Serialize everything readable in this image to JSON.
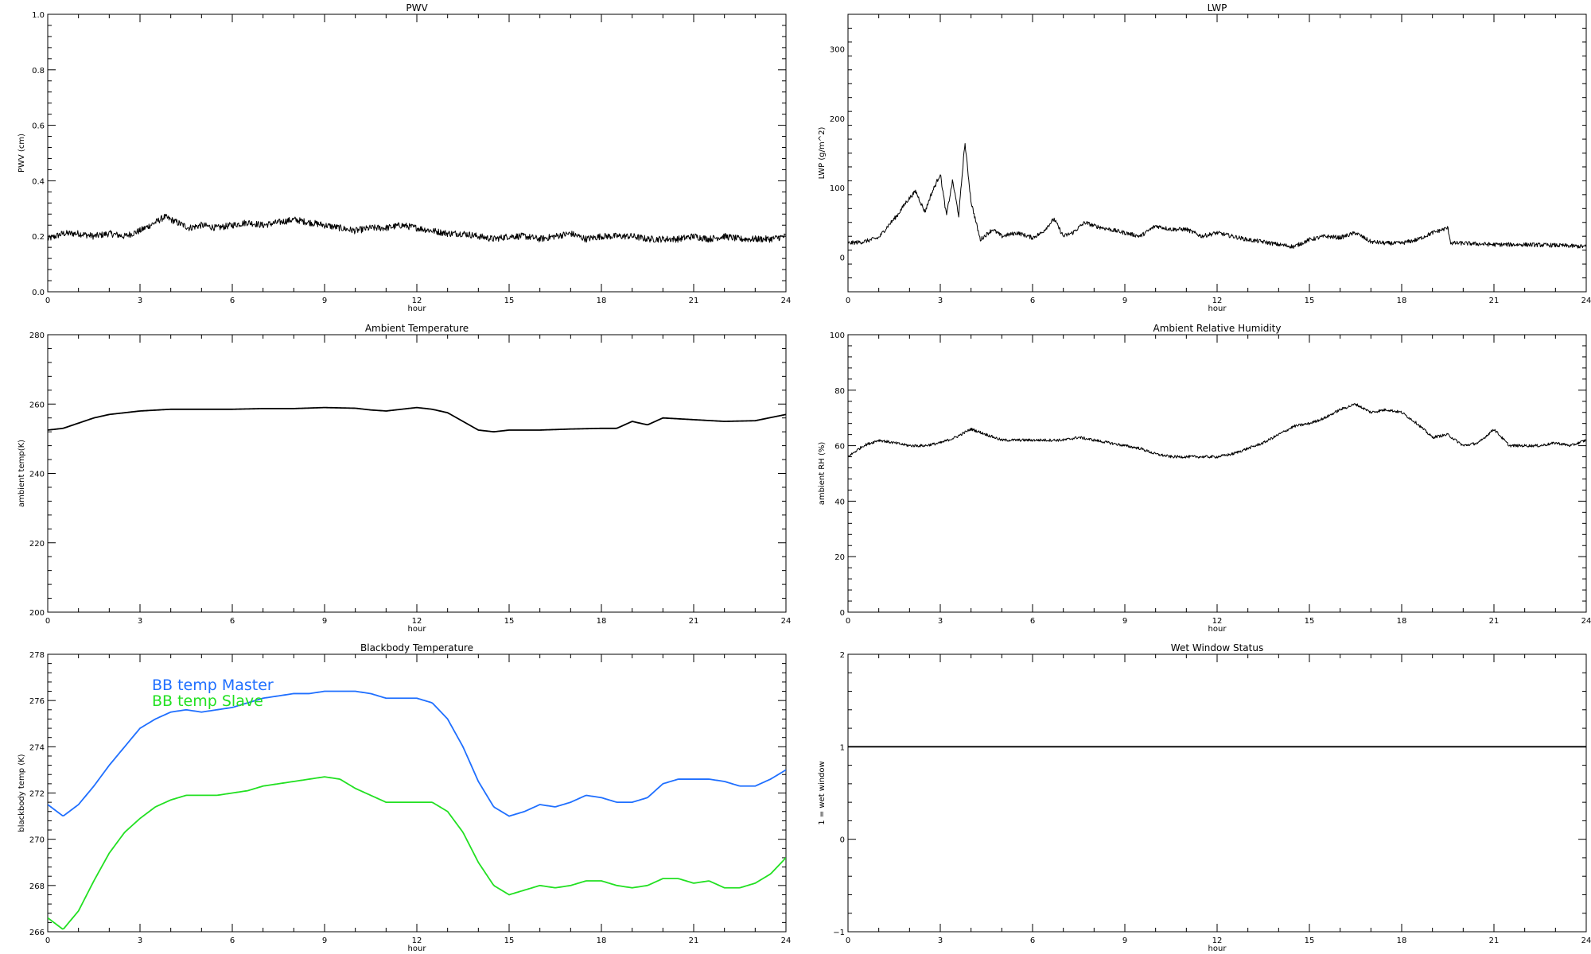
{
  "chart_data": [
    {
      "id": "pwv",
      "type": "line",
      "title": "PWV",
      "xlabel": "hour",
      "ylabel": "PWV (cm)",
      "xlim": [
        0,
        24
      ],
      "ylim": [
        0,
        1
      ],
      "x_ticks": [
        0,
        3,
        6,
        9,
        12,
        15,
        18,
        21,
        24
      ],
      "x_tick_labels": [
        "0",
        "3",
        "6",
        "9",
        "12",
        "15",
        "18",
        "21",
        "24"
      ],
      "y_ticks": [
        0,
        0.2,
        0.4,
        0.6,
        0.8,
        1.0
      ],
      "y_tick_labels": [
        "0.0",
        "0.2",
        "0.4",
        "0.6",
        "0.8",
        "1.0"
      ],
      "noise": 0.012,
      "series": [
        {
          "color": "#000000",
          "x": [
            0,
            0.5,
            1,
            1.5,
            2,
            2.5,
            3,
            3.5,
            3.8,
            4.2,
            4.6,
            5,
            5.5,
            6,
            6.5,
            7,
            7.5,
            8,
            8.5,
            9,
            9.5,
            10,
            10.5,
            11,
            11.5,
            12,
            12.5,
            13,
            13.5,
            14,
            14.5,
            15,
            15.5,
            16,
            16.5,
            17,
            17.5,
            18,
            18.5,
            19,
            19.5,
            20,
            20.5,
            21,
            21.5,
            22,
            22.5,
            23,
            23.5,
            24
          ],
          "values": [
            0.19,
            0.21,
            0.21,
            0.2,
            0.21,
            0.2,
            0.22,
            0.25,
            0.27,
            0.25,
            0.23,
            0.24,
            0.23,
            0.24,
            0.25,
            0.24,
            0.25,
            0.26,
            0.25,
            0.24,
            0.23,
            0.22,
            0.23,
            0.23,
            0.24,
            0.23,
            0.22,
            0.21,
            0.21,
            0.2,
            0.19,
            0.2,
            0.2,
            0.19,
            0.2,
            0.21,
            0.19,
            0.2,
            0.2,
            0.2,
            0.19,
            0.19,
            0.19,
            0.2,
            0.19,
            0.2,
            0.19,
            0.19,
            0.19,
            0.2
          ]
        }
      ]
    },
    {
      "id": "lwp",
      "type": "line",
      "title": "LWP",
      "xlabel": "hour",
      "ylabel": "LWP (g/m^2)",
      "xlim": [
        0,
        24
      ],
      "ylim": [
        -50,
        350
      ],
      "x_ticks": [
        0,
        3,
        6,
        9,
        12,
        15,
        18,
        21,
        24
      ],
      "x_tick_labels": [
        "0",
        "3",
        "6",
        "9",
        "12",
        "15",
        "18",
        "21",
        "24"
      ],
      "y_ticks": [
        0,
        100,
        200,
        300
      ],
      "y_tick_labels": [
        "0",
        "100",
        "200",
        "300"
      ],
      "noise": 3,
      "series": [
        {
          "color": "#000000",
          "x": [
            0,
            0.5,
            1,
            1.3,
            1.6,
            1.9,
            2.2,
            2.5,
            2.7,
            3,
            3.2,
            3.4,
            3.6,
            3.8,
            4,
            4.3,
            4.7,
            5,
            5.5,
            6,
            6.3,
            6.7,
            7,
            7.3,
            7.7,
            8,
            8.5,
            9,
            9.5,
            10,
            10.5,
            11,
            11.5,
            12,
            12.5,
            13,
            13.5,
            14,
            14.5,
            15,
            15.5,
            16,
            16.5,
            17,
            17.5,
            18,
            18.5,
            19,
            19.5,
            19.6,
            20,
            21,
            22,
            23,
            24
          ],
          "values": [
            20,
            22,
            28,
            45,
            60,
            80,
            95,
            65,
            90,
            120,
            60,
            110,
            60,
            165,
            80,
            25,
            40,
            30,
            35,
            28,
            35,
            55,
            30,
            35,
            50,
            45,
            40,
            35,
            30,
            45,
            40,
            40,
            30,
            35,
            30,
            25,
            22,
            18,
            15,
            25,
            30,
            28,
            35,
            22,
            20,
            20,
            25,
            35,
            42,
            20,
            20,
            18,
            18,
            17,
            15
          ]
        }
      ]
    },
    {
      "id": "ambient-temperature",
      "type": "line",
      "title": "Ambient Temperature",
      "xlabel": "hour",
      "ylabel": "ambient temp(K)",
      "xlim": [
        0,
        24
      ],
      "ylim": [
        200,
        280
      ],
      "x_ticks": [
        0,
        3,
        6,
        9,
        12,
        15,
        18,
        21,
        24
      ],
      "x_tick_labels": [
        "0",
        "3",
        "6",
        "9",
        "12",
        "15",
        "18",
        "21",
        "24"
      ],
      "y_ticks": [
        200,
        220,
        240,
        260,
        280
      ],
      "y_tick_labels": [
        "200",
        "220",
        "240",
        "260",
        "280"
      ],
      "series": [
        {
          "color": "#000000",
          "x": [
            0,
            0.5,
            1,
            1.5,
            2,
            2.5,
            3,
            4,
            5,
            6,
            7,
            8,
            9,
            10,
            10.5,
            11,
            11.5,
            12,
            12.5,
            13,
            13.5,
            14,
            14.5,
            15,
            16,
            17,
            18,
            18.5,
            19,
            19.5,
            20,
            21,
            22,
            23,
            24
          ],
          "values": [
            252.5,
            253,
            254.5,
            256,
            257,
            257.5,
            258,
            258.5,
            258.5,
            258.5,
            258.7,
            258.7,
            259,
            258.8,
            258.3,
            258,
            258.5,
            259,
            258.5,
            257.5,
            255,
            252.5,
            252,
            252.5,
            252.5,
            252.8,
            253,
            253,
            255,
            254,
            256,
            255.5,
            255,
            255.2,
            257
          ]
        }
      ]
    },
    {
      "id": "ambient-relative-humidity",
      "type": "line",
      "title": "Ambient Relative Humidity",
      "xlabel": "hour",
      "ylabel": "ambient RH (%)",
      "xlim": [
        0,
        24
      ],
      "ylim": [
        0,
        100
      ],
      "x_ticks": [
        0,
        3,
        6,
        9,
        12,
        15,
        18,
        21,
        24
      ],
      "x_tick_labels": [
        "0",
        "3",
        "6",
        "9",
        "12",
        "15",
        "18",
        "21",
        "24"
      ],
      "y_ticks": [
        0,
        20,
        40,
        60,
        80,
        100
      ],
      "y_tick_labels": [
        "0",
        "20",
        "40",
        "60",
        "80",
        "100"
      ],
      "noise": 0.5,
      "series": [
        {
          "color": "#000000",
          "x": [
            0,
            0.5,
            1,
            1.5,
            2,
            2.5,
            3,
            3.5,
            4,
            4.5,
            5,
            5.5,
            6,
            6.5,
            7,
            7.5,
            8,
            8.5,
            9,
            9.5,
            10,
            10.5,
            11,
            11.5,
            12,
            12.5,
            13,
            13.5,
            14,
            14.5,
            15,
            15.5,
            16,
            16.5,
            17,
            17.5,
            18,
            18.5,
            19,
            19.5,
            20,
            20.5,
            21,
            21.5,
            22,
            22.5,
            23,
            23.5,
            24
          ],
          "values": [
            56,
            60,
            62,
            61,
            60,
            60,
            61,
            63,
            66,
            64,
            62,
            62,
            62,
            62,
            62,
            63,
            62,
            61,
            60,
            59,
            57,
            56,
            56,
            56,
            56,
            57,
            59,
            61,
            64,
            67,
            68,
            70,
            73,
            75,
            72,
            73,
            72,
            68,
            63,
            64,
            60,
            61,
            66,
            60,
            60,
            60,
            61,
            60,
            62
          ]
        }
      ]
    },
    {
      "id": "blackbody-temperature",
      "type": "line",
      "title": "Blackbody Temperature",
      "xlabel": "hour",
      "ylabel": "blackbody temp (K)",
      "xlim": [
        0,
        24
      ],
      "ylim": [
        266,
        278
      ],
      "x_ticks": [
        0,
        3,
        6,
        9,
        12,
        15,
        18,
        21,
        24
      ],
      "x_tick_labels": [
        "0",
        "3",
        "6",
        "9",
        "12",
        "15",
        "18",
        "21",
        "24"
      ],
      "y_ticks": [
        266,
        268,
        270,
        272,
        274,
        276,
        278
      ],
      "y_tick_labels": [
        "266",
        "268",
        "270",
        "272",
        "274",
        "276",
        "278"
      ],
      "legend": {
        "position": "top-left"
      },
      "series": [
        {
          "name": "BB temp Master",
          "color": "#1f6fff",
          "x": [
            0,
            0.5,
            1,
            1.5,
            2,
            2.5,
            3,
            3.5,
            4,
            4.5,
            5,
            5.5,
            6,
            6.5,
            7,
            7.5,
            8,
            8.5,
            9,
            9.5,
            10,
            10.5,
            11,
            11.5,
            12,
            12.5,
            13,
            13.5,
            14,
            14.5,
            15,
            15.5,
            16,
            16.5,
            17,
            17.5,
            18,
            18.5,
            19,
            19.5,
            20,
            20.5,
            21,
            21.5,
            22,
            22.5,
            23,
            23.5,
            24
          ],
          "values": [
            271.5,
            271,
            271.5,
            272.3,
            273.2,
            274,
            274.8,
            275.2,
            275.5,
            275.6,
            275.5,
            275.6,
            275.7,
            275.9,
            276.1,
            276.2,
            276.3,
            276.3,
            276.4,
            276.4,
            276.4,
            276.3,
            276.1,
            276.1,
            276.1,
            275.9,
            275.2,
            274,
            272.5,
            271.4,
            271,
            271.2,
            271.5,
            271.4,
            271.6,
            271.9,
            271.8,
            271.6,
            271.6,
            271.8,
            272.4,
            272.6,
            272.6,
            272.6,
            272.5,
            272.3,
            272.3,
            272.6,
            273
          ]
        },
        {
          "name": "BB temp Slave",
          "color": "#22e022",
          "x": [
            0,
            0.5,
            1,
            1.5,
            2,
            2.5,
            3,
            3.5,
            4,
            4.5,
            5,
            5.5,
            6,
            6.5,
            7,
            7.5,
            8,
            8.5,
            9,
            9.5,
            10,
            10.5,
            11,
            11.5,
            12,
            12.5,
            13,
            13.5,
            14,
            14.5,
            15,
            15.5,
            16,
            16.5,
            17,
            17.5,
            18,
            18.5,
            19,
            19.5,
            20,
            20.5,
            21,
            21.5,
            22,
            22.5,
            23,
            23.5,
            24
          ],
          "values": [
            266.6,
            266.1,
            266.9,
            268.2,
            269.4,
            270.3,
            270.9,
            271.4,
            271.7,
            271.9,
            271.9,
            271.9,
            272,
            272.1,
            272.3,
            272.4,
            272.5,
            272.6,
            272.7,
            272.6,
            272.2,
            271.9,
            271.6,
            271.6,
            271.6,
            271.6,
            271.2,
            270.3,
            269,
            268,
            267.6,
            267.8,
            268,
            267.9,
            268,
            268.2,
            268.2,
            268,
            267.9,
            268,
            268.3,
            268.3,
            268.1,
            268.2,
            267.9,
            267.9,
            268.1,
            268.5,
            269.2
          ]
        }
      ]
    },
    {
      "id": "wet-window-status",
      "type": "line",
      "title": "Wet Window Status",
      "xlabel": "hour",
      "ylabel": "1 = wet window",
      "xlim": [
        0,
        24
      ],
      "ylim": [
        -1,
        2
      ],
      "x_ticks": [
        0,
        3,
        6,
        9,
        12,
        15,
        18,
        21,
        24
      ],
      "x_tick_labels": [
        "0",
        "3",
        "6",
        "9",
        "12",
        "15",
        "18",
        "21",
        "24"
      ],
      "y_ticks": [
        -1,
        0,
        1,
        2
      ],
      "y_tick_labels": [
        "−1",
        "0",
        "1",
        "2"
      ],
      "series": [
        {
          "color": "#000000",
          "x": [
            0,
            24
          ],
          "values": [
            1,
            1
          ]
        }
      ]
    }
  ]
}
